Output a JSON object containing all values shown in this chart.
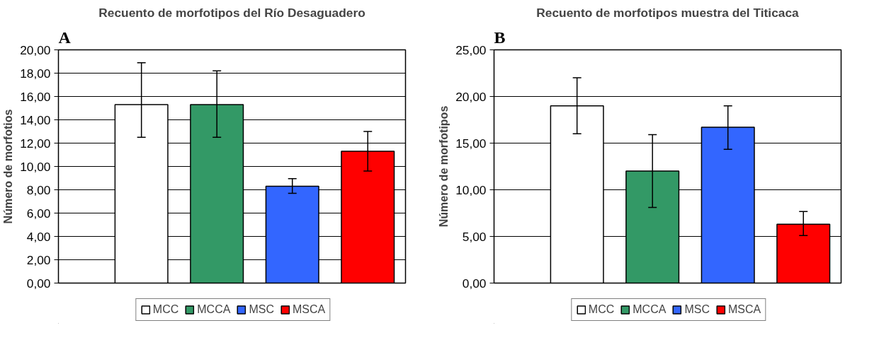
{
  "chart_data": [
    {
      "type": "bar",
      "title": "Recuento de morfotipos del Río Desaguadero",
      "ylabel": "Número de morfotios",
      "annotations": [
        "A"
      ],
      "categories": [
        null
      ],
      "series": [
        {
          "name": "MCC",
          "color": "#ffffff",
          "values": [
            15.3
          ],
          "errors": [
            [
              12.5,
              18.9
            ]
          ]
        },
        {
          "name": "MCCA",
          "color": "#339966",
          "values": [
            15.3
          ],
          "errors": [
            [
              12.5,
              18.2
            ]
          ]
        },
        {
          "name": "MSC",
          "color": "#3366ff",
          "values": [
            8.3
          ],
          "errors": [
            [
              7.7,
              8.95
            ]
          ]
        },
        {
          "name": "MSCA",
          "color": "#ff0000",
          "values": [
            11.3
          ],
          "errors": [
            [
              9.6,
              13.0
            ]
          ]
        }
      ],
      "ylim": [
        0,
        20
      ],
      "yticks": [
        {
          "value": 0,
          "label": "0,00"
        },
        {
          "value": 2,
          "label": "2,00"
        },
        {
          "value": 4,
          "label": "4,00"
        },
        {
          "value": 6,
          "label": "6,00"
        },
        {
          "value": 8,
          "label": "8,00"
        },
        {
          "value": 10,
          "label": "10,00"
        },
        {
          "value": 12,
          "label": "12,00"
        },
        {
          "value": 14,
          "label": "14,00"
        },
        {
          "value": 16,
          "label": "16,00"
        },
        {
          "value": 18,
          "label": "18,00"
        },
        {
          "value": 20,
          "label": "20,00"
        }
      ],
      "grid": "y",
      "legend": "bottom",
      "tick_labels": "y"
    },
    {
      "type": "bar",
      "title": "Recuento de morfotipos muestra del Titicaca",
      "ylabel": "Número de morfotipos",
      "annotations": [
        "B"
      ],
      "categories": [
        null
      ],
      "series": [
        {
          "name": "MCC",
          "color": "#ffffff",
          "values": [
            19.0
          ],
          "errors": [
            [
              16.0,
              22.0
            ]
          ]
        },
        {
          "name": "MCCA",
          "color": "#339966",
          "values": [
            12.0
          ],
          "errors": [
            [
              8.1,
              15.9
            ]
          ]
        },
        {
          "name": "MSC",
          "color": "#3366ff",
          "values": [
            16.7
          ],
          "errors": [
            [
              14.33,
              19.0
            ]
          ]
        },
        {
          "name": "MSCA",
          "color": "#ff0000",
          "values": [
            6.3
          ],
          "errors": [
            [
              5.1,
              7.67
            ]
          ]
        }
      ],
      "ylim": [
        0,
        25
      ],
      "yticks": [
        {
          "value": 0,
          "label": "0,00"
        },
        {
          "value": 5,
          "label": "5,00"
        },
        {
          "value": 10,
          "label": "10,00"
        },
        {
          "value": 15,
          "label": "15,00"
        },
        {
          "value": 20,
          "label": "20,00"
        },
        {
          "value": 25,
          "label": "25,00"
        }
      ],
      "grid": "y",
      "legend": "bottom",
      "tick_labels": "y"
    }
  ]
}
